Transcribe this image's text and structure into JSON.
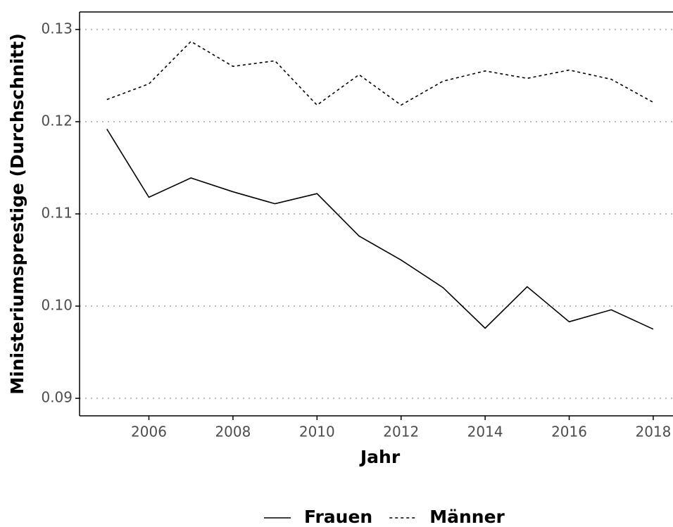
{
  "chart_data": {
    "type": "line",
    "x_label": "Jahr",
    "y_label": "Ministeriumsprestige (Durchschnitt)",
    "x": [
      2005,
      2006,
      2007,
      2008,
      2009,
      2010,
      2011,
      2012,
      2013,
      2014,
      2015,
      2016,
      2017,
      2018
    ],
    "series": [
      {
        "name": "Frauen",
        "color": "#000000",
        "dash": "solid",
        "values": [
          0.1192,
          0.1118,
          0.1139,
          0.1124,
          0.1111,
          0.1122,
          0.1076,
          0.105,
          0.102,
          0.0976,
          0.1021,
          0.0983,
          0.0996,
          0.0975
        ]
      },
      {
        "name": "Männer",
        "color": "#000000",
        "dash": "dotted",
        "values": [
          0.1224,
          0.1241,
          0.1287,
          0.126,
          0.1266,
          0.1218,
          0.1251,
          0.1218,
          0.1244,
          0.1255,
          0.1247,
          0.1256,
          0.1246,
          0.1221
        ]
      }
    ],
    "xlim": [
      2004.35,
      2018.47
    ],
    "ylim": [
      0.0881,
      0.1319
    ],
    "xticks": [
      2006,
      2008,
      2010,
      2012,
      2014,
      2016,
      2018
    ],
    "yticks": [
      0.09,
      {
        "value": 0.1,
        "label": "0.10"
      },
      0.11,
      0.12,
      0.13
    ],
    "grid": true,
    "legend": "bottom"
  }
}
